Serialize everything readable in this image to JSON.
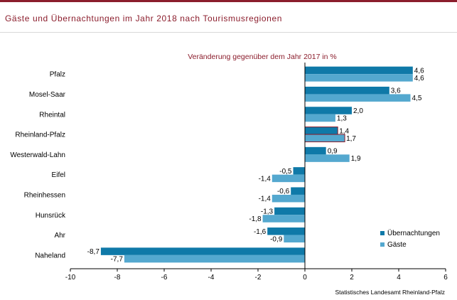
{
  "header": {
    "title": "Gäste und Übernachtungen im Jahr 2018 nach Tourismusregionen"
  },
  "colors": {
    "accent": "#8b1d2c",
    "series1": "#0f79a8",
    "series2": "#54a8cf"
  },
  "chart_data": {
    "type": "bar",
    "orientation": "horizontal",
    "subtitle": "Veränderung gegenüber dem Jahr 2017 in %",
    "categories": [
      "Pfalz",
      "Mosel-Saar",
      "Rheintal",
      "Rheinland-Pfalz",
      "Westerwald-Lahn",
      "Eifel",
      "Rheinhessen",
      "Hunsrück",
      "Ahr",
      "Naheland"
    ],
    "series": [
      {
        "name": "Übernachtungen",
        "values": [
          4.6,
          3.6,
          2.0,
          1.4,
          0.9,
          -0.5,
          -0.6,
          -1.3,
          -1.6,
          -8.7
        ]
      },
      {
        "name": "Gäste",
        "values": [
          4.6,
          4.5,
          1.3,
          1.7,
          1.9,
          -1.4,
          -1.4,
          -1.8,
          -0.9,
          -7.7
        ]
      }
    ],
    "value_labels": [
      [
        "4,6",
        "3,6",
        "2,0",
        "1,4",
        "0,9",
        "-0,5",
        "-0,6",
        "-1,3",
        "-1,6",
        "-8,7"
      ],
      [
        "4,6",
        "4,5",
        "1,3",
        "1,7",
        "1,9",
        "-1,4",
        "-1,4",
        "-1,8",
        "-0,9",
        "-7,7"
      ]
    ],
    "highlight_category": "Rheinland-Pfalz",
    "xlim": [
      -10,
      6
    ],
    "xticks": [
      -10,
      -8,
      -6,
      -4,
      -2,
      0,
      2,
      4,
      6
    ],
    "xtick_labels": [
      "-10",
      "-8",
      "-6",
      "-4",
      "-2",
      "0",
      "2",
      "4",
      "6"
    ],
    "legend_position": "bottom-right",
    "grid": false
  },
  "footer": {
    "source": "Statistisches Landesamt Rheinland-Pfalz"
  }
}
